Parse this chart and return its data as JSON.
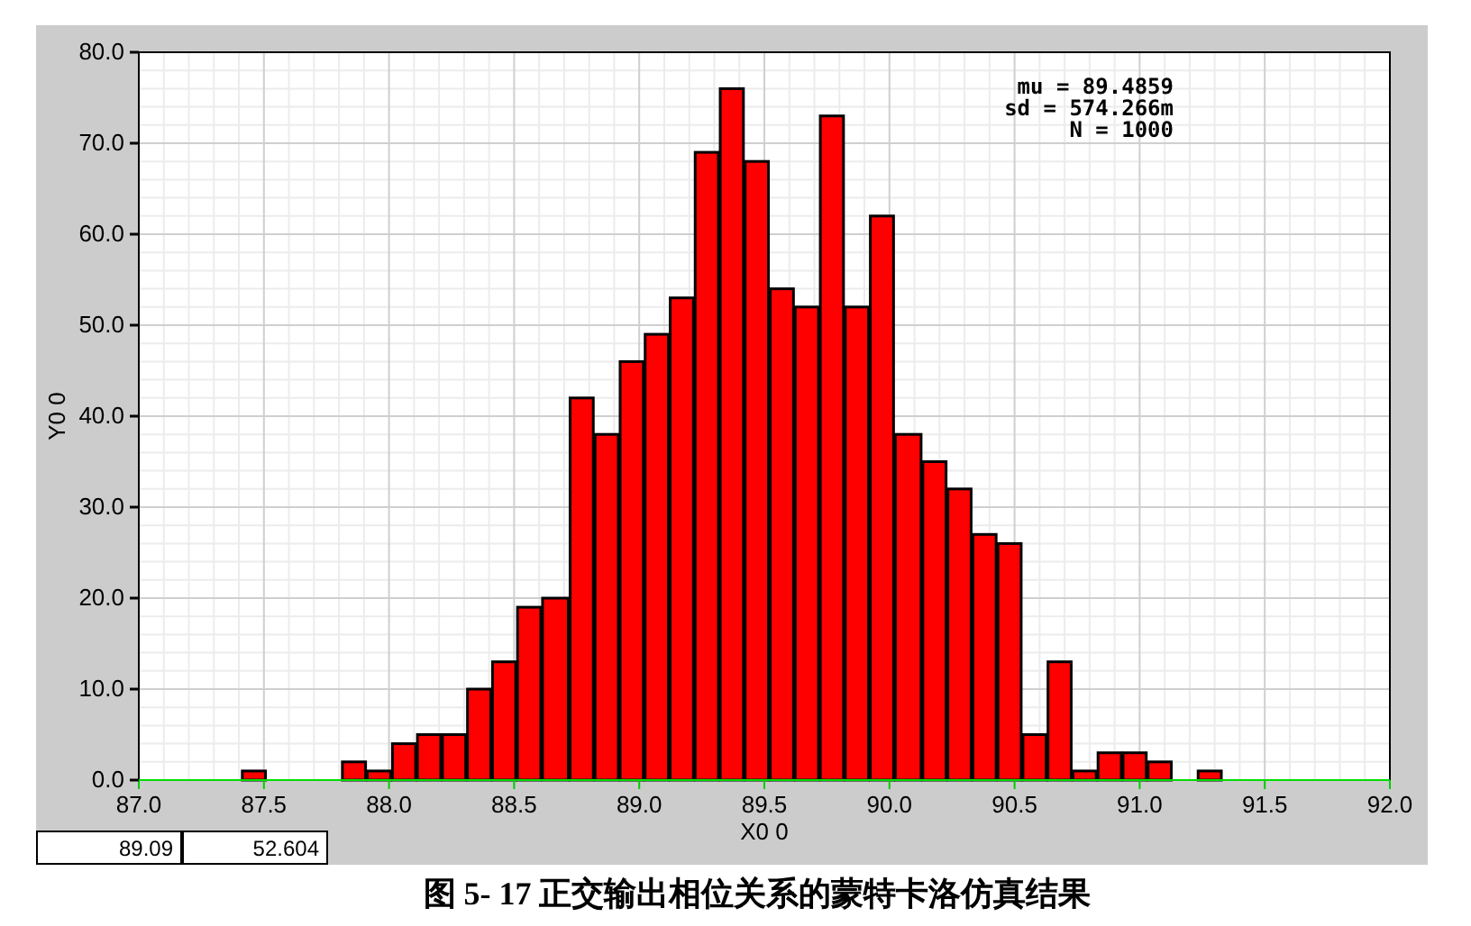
{
  "chart_data": {
    "type": "histogram",
    "xlabel": "X0 0",
    "ylabel": "Y0 0",
    "bins": [
      87.41,
      87.51,
      87.81,
      87.91,
      88.01,
      88.11,
      88.21,
      88.31,
      88.41,
      88.51,
      88.61,
      88.72,
      88.82,
      88.92,
      89.02,
      89.12,
      89.22,
      89.32,
      89.42,
      89.52,
      89.62,
      89.72,
      89.82,
      89.92,
      90.02,
      90.13,
      90.23,
      90.33,
      90.43,
      90.53,
      90.63,
      90.73,
      90.83,
      90.93,
      91.03,
      91.13,
      91.23,
      91.33
    ],
    "values": [
      1,
      0,
      2,
      1,
      4,
      5,
      5,
      10,
      13,
      19,
      20,
      42,
      38,
      46,
      49,
      53,
      69,
      76,
      68,
      54,
      52,
      73,
      52,
      62,
      38,
      35,
      32,
      27,
      26,
      5,
      13,
      1,
      3,
      3,
      2,
      0,
      1
    ],
    "color": "#ff0000",
    "xlim": [
      87.0,
      92.0
    ],
    "ylim": [
      0,
      80
    ],
    "xticks": [
      {
        "value": 87,
        "label": "87.0"
      },
      87.5,
      {
        "value": 88,
        "label": "88.0"
      },
      88.5,
      {
        "value": 89,
        "label": "89.0"
      },
      89.5,
      {
        "value": 90,
        "label": "90.0"
      },
      90.5,
      {
        "value": 91,
        "label": "91.0"
      },
      91.5,
      {
        "value": 92,
        "label": "92.0"
      }
    ],
    "yticks": [
      {
        "value": 0,
        "label": "0.0"
      },
      {
        "value": 10,
        "label": "10.0"
      },
      {
        "value": 20,
        "label": "20.0"
      },
      {
        "value": 30,
        "label": "30.0"
      },
      {
        "value": 40,
        "label": "40.0"
      },
      {
        "value": 50,
        "label": "50.0"
      },
      {
        "value": 60,
        "label": "60.0"
      },
      {
        "value": 70,
        "label": "70.0"
      },
      {
        "value": 80,
        "label": "80.0"
      }
    ],
    "grid": true,
    "annotations": [
      "mu = 89.4859",
      "sd = 574.266m",
      "N = 1000",
      "89.09",
      "52.604",
      "图 5- 17 正交输出相位关系的蒙特卡洛仿真结果"
    ]
  }
}
